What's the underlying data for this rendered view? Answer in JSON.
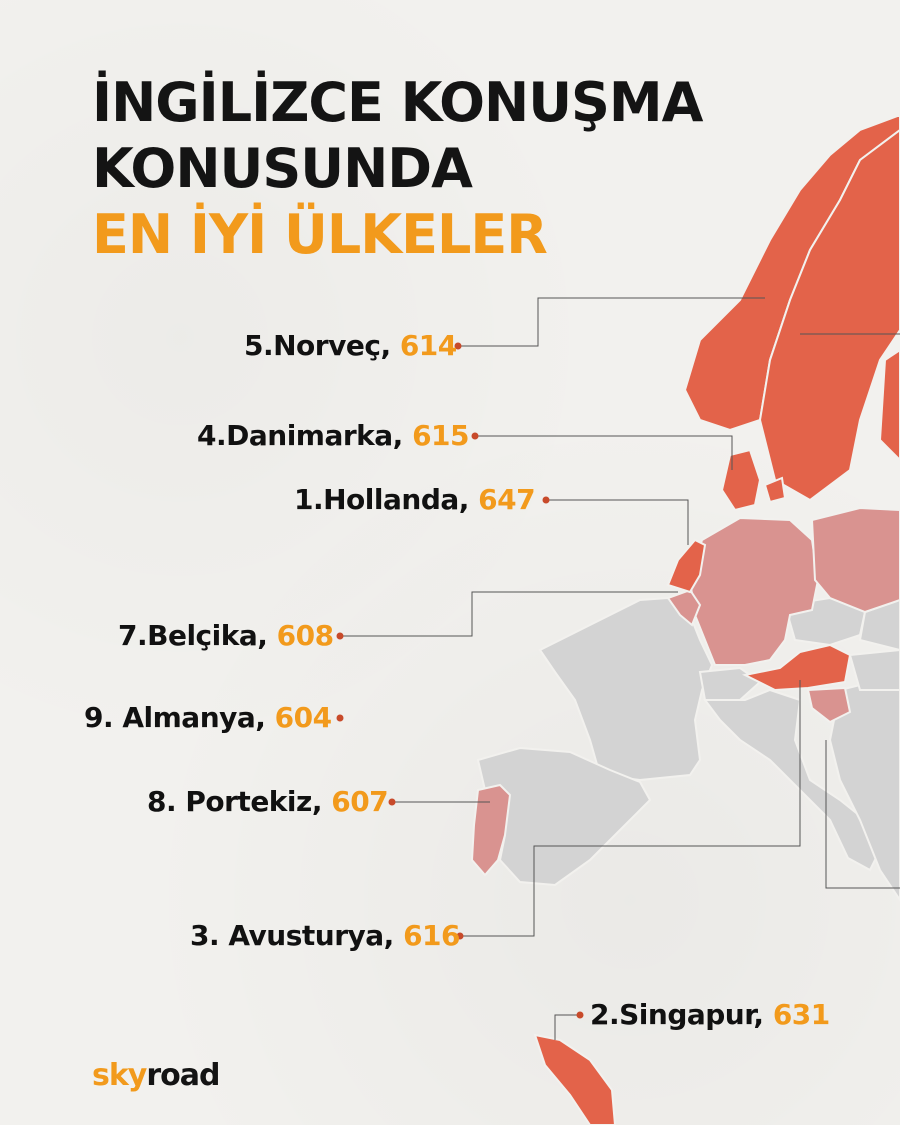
{
  "title": {
    "line1": "İNGİLİZCE KONUŞMA",
    "line2": "KONUSUNDA",
    "line3": "EN İYİ ÜLKELER"
  },
  "rankings": [
    {
      "label": "5.Norveç,",
      "score": "614"
    },
    {
      "label": "4.Danimarka,",
      "score": "615"
    },
    {
      "label": "1.Hollanda,",
      "score": "647"
    },
    {
      "label": "7.Belçika,",
      "score": "608"
    },
    {
      "label": "9. Almanya,",
      "score": "604"
    },
    {
      "label": "8. Portekiz,",
      "score": "607"
    },
    {
      "label": "3. Avusturya,",
      "score": "616"
    },
    {
      "label": "2.Singapur,",
      "score": "631"
    }
  ],
  "logo": {
    "part1": "sky",
    "part2": "road"
  },
  "colors": {
    "accent": "#f29a1c",
    "top_tier": "#e6633f",
    "mid_tier": "#d9908a",
    "low_tier": "#e3867a",
    "neutral": "#d4d4d4",
    "leader_line": "#555555",
    "dot": "#c84a2a"
  }
}
